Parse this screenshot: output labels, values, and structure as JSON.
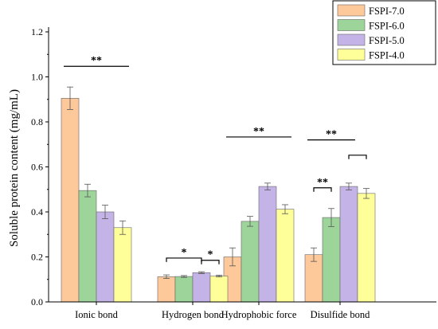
{
  "chart_data": {
    "type": "bar",
    "title": "",
    "xlabel": "",
    "ylabel": "Soluble protein content (mg/mL)",
    "ylim": [
      0,
      1.2
    ],
    "yticks": [
      "0.0",
      "0.2",
      "0.4",
      "0.6",
      "0.8",
      "1.0",
      "1.2"
    ],
    "categories": [
      "Ionic bond",
      "Hydrogen bond",
      "Hydrophobic force",
      "Disulfide bond"
    ],
    "legend_position": "top-right",
    "series": [
      {
        "name": "FSPI-7.0",
        "color": "#FDC89A",
        "values": [
          0.905,
          0.112,
          0.2,
          0.21
        ],
        "errors": [
          0.05,
          0.008,
          0.04,
          0.03
        ]
      },
      {
        "name": "FSPI-6.0",
        "color": "#9DD49A",
        "values": [
          0.495,
          0.113,
          0.358,
          0.375
        ],
        "errors": [
          0.028,
          0.004,
          0.022,
          0.04
        ]
      },
      {
        "name": "FSPI-5.0",
        "color": "#C4B3E6",
        "values": [
          0.4,
          0.13,
          0.513,
          0.513
        ],
        "errors": [
          0.03,
          0.004,
          0.015,
          0.015
        ]
      },
      {
        "name": "FSPI-4.0",
        "color": "#FFFF99",
        "values": [
          0.33,
          0.115,
          0.412,
          0.482
        ],
        "errors": [
          0.03,
          0.004,
          0.02,
          0.022
        ]
      }
    ],
    "significance": [
      {
        "category": 0,
        "type": "line",
        "from": 0,
        "to": 3,
        "level": 1.047,
        "label": "**"
      },
      {
        "category": 1,
        "type": "bracket",
        "from": 0,
        "to": 2,
        "level": 0.195,
        "label": "*"
      },
      {
        "category": 1,
        "type": "bracket",
        "from": 2,
        "to": 3,
        "level": 0.185,
        "label": "*"
      },
      {
        "category": 2,
        "type": "line",
        "from": 0,
        "to": 3,
        "level": 0.733,
        "label": "**"
      },
      {
        "category": 3,
        "type": "bracket",
        "from": 0,
        "to": 1,
        "level": 0.507,
        "label": "**"
      },
      {
        "category": 3,
        "type": "line",
        "from": 0,
        "to": 2,
        "level": 0.72,
        "label": "**"
      },
      {
        "category": 3,
        "type": "bracket",
        "from": 2,
        "to": 3,
        "level": 0.652,
        "label": ""
      }
    ]
  }
}
